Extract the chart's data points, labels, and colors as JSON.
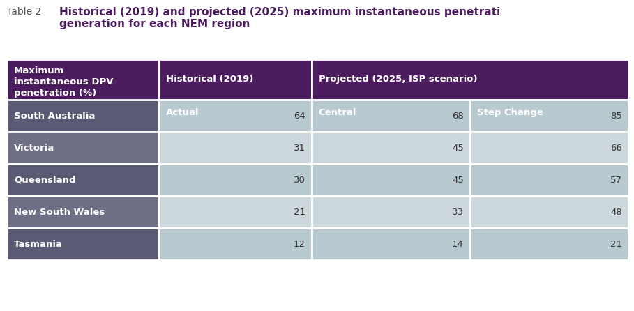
{
  "title_label": "Table 2",
  "title_text": "Historical (2019) and projected (2025) maximum instantaneous penetrati\ngeneration for each NEM region",
  "col_header_row1_0": "Maximum\ninstantaneous DPV\npenetration (%)",
  "col_header_row1_1": "Historical (2019)",
  "col_header_row1_2": "Projected (2025, ISP scenario)",
  "col_header_row2_1": "Actual",
  "col_header_row2_2": "Central",
  "col_header_row2_3": "Step Change",
  "regions": [
    "South Australia",
    "Victoria",
    "Queensland",
    "New South Wales",
    "Tasmania"
  ],
  "actual": [
    64,
    31,
    30,
    21,
    12
  ],
  "central": [
    68,
    45,
    45,
    33,
    14
  ],
  "step_change": [
    85,
    66,
    57,
    48,
    21
  ],
  "header_bg": "#4b1d5e",
  "row_label_bg_dark": "#5a5a75",
  "row_label_bg_light": "#6e6e85",
  "data_bg_row1": "#b8c9cf",
  "data_bg_row2": "#cdd8dc",
  "header_text_color": "#ffffff",
  "row_label_text_color": "#ffffff",
  "data_text_color": "#333333",
  "title_label_color": "#555555",
  "title_text_color": "#4b1d5e",
  "border_color": "#ffffff",
  "title_label_fontsize": 10,
  "title_text_fontsize": 11,
  "header_fontsize": 9.5,
  "data_fontsize": 9.5,
  "row_label_fontsize": 9.5
}
